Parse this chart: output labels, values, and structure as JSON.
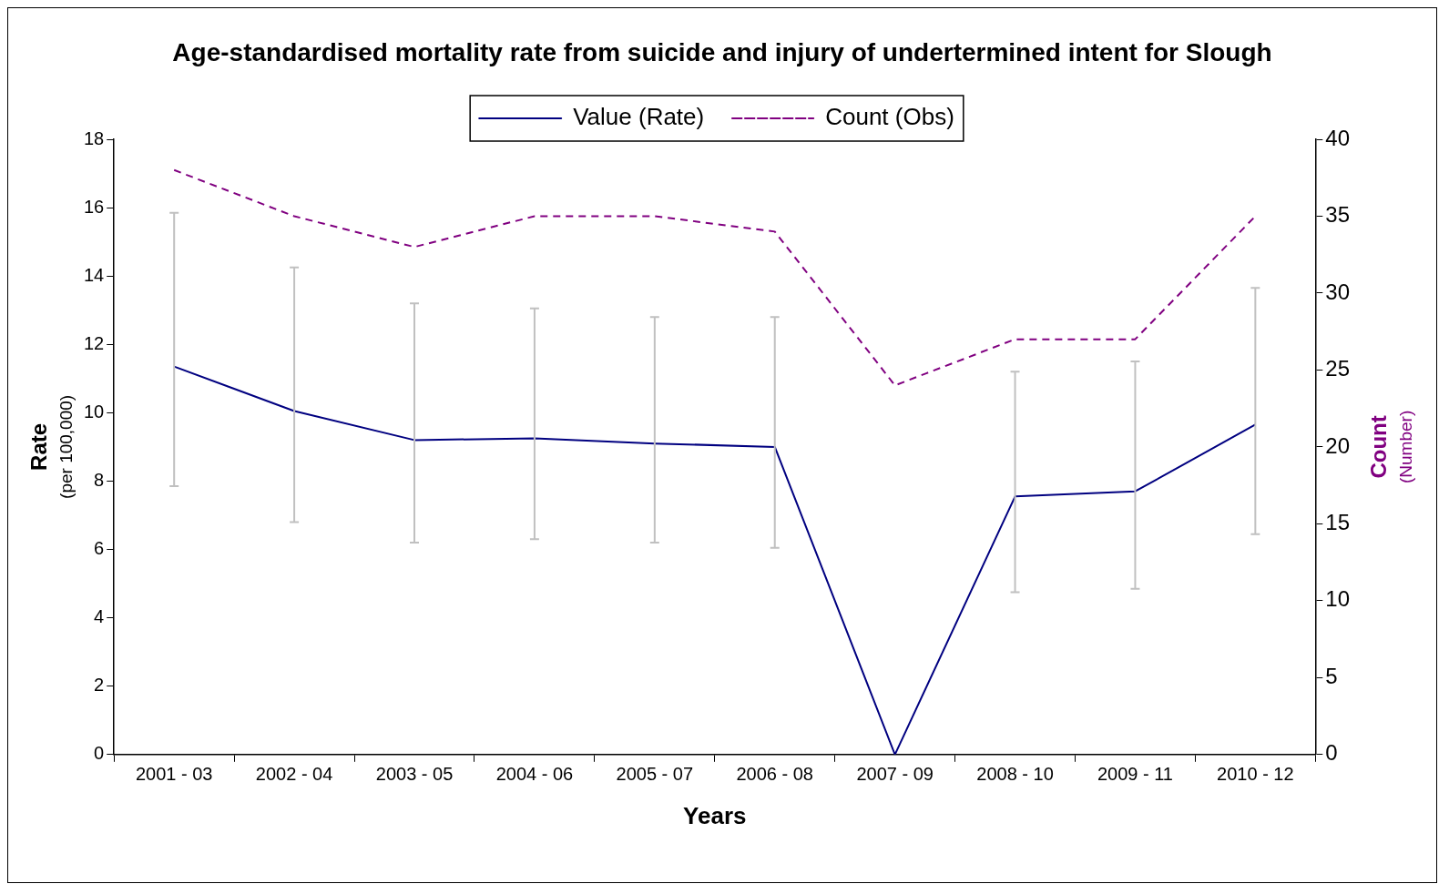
{
  "chart_data": {
    "type": "line",
    "title": "Age-standardised mortality rate from suicide and injury of undertermined intent for Slough",
    "xlabel": "Years",
    "ylabel": "Rate\n(per 100,000)",
    "y2label": "Count\n(Number)",
    "categories": [
      "2001 - 03",
      "2002 - 04",
      "2003 - 05",
      "2004 - 06",
      "2005 - 07",
      "2006 - 08",
      "2007 - 09",
      "2008 - 10",
      "2009 - 11",
      "2010 - 12"
    ],
    "series": [
      {
        "name": "Value (Rate)",
        "color": "#000080",
        "line_style": "solid",
        "values": [
          11.35,
          10.05,
          9.2,
          9.25,
          9.1,
          9.0,
          0,
          7.55,
          7.7,
          9.65
        ],
        "errors": [
          [
            7.85,
            15.85
          ],
          [
            6.8,
            14.25
          ],
          [
            6.2,
            13.2
          ],
          [
            6.3,
            13.05
          ],
          [
            6.2,
            12.8
          ],
          [
            6.05,
            12.8
          ],
          null,
          [
            4.75,
            11.2
          ],
          [
            4.85,
            11.5
          ],
          [
            6.45,
            13.65
          ]
        ]
      },
      {
        "name": "Count (Obs)",
        "color": "#800080",
        "line_style": "dashed",
        "axis": "y2",
        "values": [
          38,
          35,
          33,
          35,
          35,
          34,
          24,
          27,
          27,
          35
        ]
      }
    ],
    "ylim": [
      0,
      18
    ],
    "yticks": [
      0,
      2,
      4,
      6,
      8,
      10,
      12,
      14,
      16,
      18
    ],
    "y2lim": [
      0,
      40
    ],
    "y2ticks": [
      0,
      5,
      10,
      15,
      20,
      25,
      30,
      35,
      40
    ],
    "legend": "top",
    "grid": false,
    "marker": "none"
  }
}
